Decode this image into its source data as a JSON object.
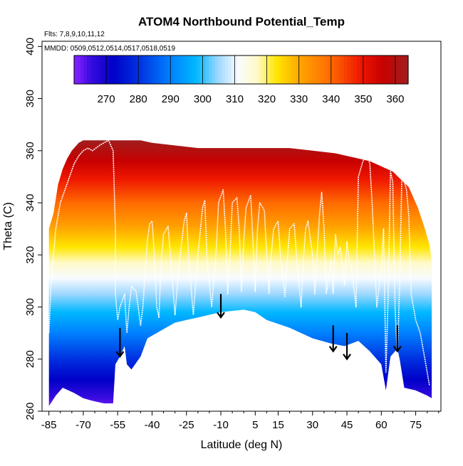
{
  "chart_data": {
    "type": "heatmap",
    "title": "ATOM4 Northbound Potential_Temp",
    "xlabel": "Latitude (deg N)",
    "ylabel": "Theta (C)",
    "annotations": {
      "flights": "Flts: 7,8,9,10,11,12",
      "dates": "MMDD: 0509,0512,0514,0517,0518,0519"
    },
    "xlim": [
      -88,
      86
    ],
    "ylim": [
      260,
      402
    ],
    "x_ticks": [
      -85,
      -70,
      -55,
      -40,
      -25,
      -10,
      5,
      15,
      30,
      45,
      60,
      75
    ],
    "y_ticks": [
      260,
      280,
      300,
      320,
      340,
      360,
      380,
      400
    ],
    "colorbar": {
      "range": [
        260,
        364
      ],
      "ticks": [
        270,
        280,
        290,
        300,
        310,
        320,
        330,
        340,
        350,
        360
      ],
      "stops": [
        {
          "v": 261,
          "color": "#7f1fff"
        },
        {
          "v": 265,
          "color": "#3a0ce0"
        },
        {
          "v": 272,
          "color": "#0000c8"
        },
        {
          "v": 280,
          "color": "#0030e0"
        },
        {
          "v": 290,
          "color": "#0080ff"
        },
        {
          "v": 298,
          "color": "#00b8ff"
        },
        {
          "v": 305,
          "color": "#9fd8ff"
        },
        {
          "v": 311,
          "color": "#f8fbff"
        },
        {
          "v": 317,
          "color": "#fffac8"
        },
        {
          "v": 323,
          "color": "#ffe600"
        },
        {
          "v": 331,
          "color": "#ffa000"
        },
        {
          "v": 340,
          "color": "#ff6a00"
        },
        {
          "v": 349,
          "color": "#ef1800"
        },
        {
          "v": 356,
          "color": "#c80000"
        },
        {
          "v": 364,
          "color": "#a01e1e"
        }
      ]
    },
    "surface_boundary": [
      [
        -85,
        262
      ],
      [
        -82,
        266
      ],
      [
        -79,
        269
      ],
      [
        -74,
        267
      ],
      [
        -70,
        265
      ],
      [
        -66,
        264
      ],
      [
        -61,
        263
      ],
      [
        -57,
        263
      ],
      [
        -56,
        278
      ],
      [
        -54,
        281
      ],
      [
        -52,
        285
      ],
      [
        -51,
        278
      ],
      [
        -49,
        276
      ],
      [
        -45,
        281
      ],
      [
        -42,
        288
      ],
      [
        -38,
        290
      ],
      [
        -34,
        292
      ],
      [
        -30,
        294
      ],
      [
        -25,
        295
      ],
      [
        -20,
        296
      ],
      [
        -15,
        297
      ],
      [
        -10,
        298
      ],
      [
        -5,
        298.5
      ],
      [
        0,
        299
      ],
      [
        5,
        298
      ],
      [
        10,
        295
      ],
      [
        20,
        292
      ],
      [
        30,
        288
      ],
      [
        38,
        286
      ],
      [
        44,
        285
      ],
      [
        50,
        287
      ],
      [
        55,
        283
      ],
      [
        60,
        278
      ],
      [
        62,
        268
      ],
      [
        64,
        281
      ],
      [
        67,
        284
      ],
      [
        68,
        280
      ],
      [
        70,
        269
      ],
      [
        75,
        268
      ],
      [
        80,
        266
      ],
      [
        82,
        265
      ]
    ],
    "top_boundary": [
      [
        -85,
        330
      ],
      [
        -83,
        336
      ],
      [
        -81,
        347
      ],
      [
        -79,
        353
      ],
      [
        -77,
        357
      ],
      [
        -75,
        360
      ],
      [
        -72,
        363
      ],
      [
        -70,
        364
      ],
      [
        -66,
        364
      ],
      [
        -60,
        364
      ],
      [
        -45,
        364
      ],
      [
        -40,
        363
      ],
      [
        -20,
        361
      ],
      [
        0,
        361
      ],
      [
        20,
        361
      ],
      [
        30,
        360
      ],
      [
        40,
        359
      ],
      [
        55,
        356
      ],
      [
        65,
        352
      ],
      [
        72,
        346
      ],
      [
        76,
        338
      ],
      [
        79,
        330
      ],
      [
        81,
        324
      ],
      [
        82,
        318
      ]
    ],
    "flight_tracks": [
      [
        [
          -85,
          290
        ],
        [
          -84,
          310
        ],
        [
          -83,
          320
        ],
        [
          -82,
          330
        ],
        [
          -80,
          340
        ],
        [
          -78,
          345
        ],
        [
          -76,
          350
        ],
        [
          -74,
          355
        ],
        [
          -72,
          358
        ],
        [
          -70,
          360
        ],
        [
          -68,
          361
        ],
        [
          -66,
          360
        ],
        [
          -63,
          362
        ],
        [
          -61,
          363
        ],
        [
          -59,
          364
        ],
        [
          -58,
          362
        ],
        [
          -57,
          360
        ],
        [
          -56,
          330
        ],
        [
          -56,
          305
        ],
        [
          -55,
          295
        ],
        [
          -54,
          300
        ],
        [
          -52,
          305
        ],
        [
          -51,
          290
        ],
        [
          -50,
          300
        ],
        [
          -49,
          308
        ],
        [
          -47,
          306
        ],
        [
          -45,
          293
        ],
        [
          -44,
          300
        ],
        [
          -42,
          326
        ],
        [
          -41,
          332
        ],
        [
          -40,
          333
        ],
        [
          -39,
          320
        ],
        [
          -38,
          300
        ],
        [
          -37,
          296
        ],
        [
          -36,
          318
        ],
        [
          -35,
          328
        ],
        [
          -33,
          331
        ],
        [
          -31,
          309
        ],
        [
          -30,
          297
        ],
        [
          -28,
          318
        ],
        [
          -26,
          333
        ],
        [
          -25,
          336
        ],
        [
          -24,
          318
        ],
        [
          -22,
          297
        ],
        [
          -20,
          320
        ],
        [
          -18,
          338
        ],
        [
          -17,
          341
        ],
        [
          -16,
          318
        ],
        [
          -14,
          300
        ],
        [
          -12,
          322
        ],
        [
          -11,
          340
        ],
        [
          -9,
          345
        ],
        [
          -8,
          330
        ],
        [
          -7,
          305
        ],
        [
          -6,
          320
        ],
        [
          -5,
          340
        ],
        [
          -3,
          342
        ],
        [
          -2,
          330
        ],
        [
          -1,
          306
        ],
        [
          0,
          325
        ],
        [
          1,
          338
        ],
        [
          3,
          343
        ],
        [
          4,
          325
        ],
        [
          5,
          306
        ],
        [
          6,
          330
        ],
        [
          7,
          340
        ],
        [
          9,
          337
        ],
        [
          10,
          320
        ],
        [
          11,
          305
        ],
        [
          12,
          320
        ],
        [
          13,
          330
        ],
        [
          15,
          333
        ],
        [
          16,
          320
        ],
        [
          18,
          304
        ],
        [
          19,
          318
        ],
        [
          20,
          330
        ],
        [
          22,
          332
        ],
        [
          23,
          320
        ],
        [
          25,
          300
        ],
        [
          26,
          318
        ],
        [
          27,
          330
        ],
        [
          28,
          333
        ],
        [
          30,
          320
        ],
        [
          31,
          305
        ],
        [
          33,
          335
        ],
        [
          34,
          344
        ],
        [
          35,
          330
        ],
        [
          36,
          305
        ],
        [
          38,
          318
        ],
        [
          39,
          305
        ],
        [
          40,
          328
        ],
        [
          41,
          320
        ],
        [
          42,
          323
        ],
        [
          44,
          308
        ],
        [
          45,
          325
        ],
        [
          46,
          318
        ],
        [
          47,
          315
        ],
        [
          49,
          300
        ],
        [
          50,
          350
        ],
        [
          52,
          356
        ],
        [
          54,
          358
        ],
        [
          55,
          355
        ],
        [
          56,
          340
        ],
        [
          57,
          320
        ],
        [
          58,
          300
        ],
        [
          60,
          315
        ],
        [
          61,
          330
        ],
        [
          62,
          275
        ],
        [
          63,
          305
        ],
        [
          64,
          352
        ],
        [
          65,
          348
        ],
        [
          66,
          300
        ],
        [
          67,
          280
        ],
        [
          68,
          310
        ],
        [
          69,
          352
        ],
        [
          70,
          348
        ],
        [
          71,
          345
        ],
        [
          72,
          335
        ],
        [
          73,
          305
        ],
        [
          74,
          300
        ],
        [
          75,
          295
        ],
        [
          77,
          290
        ],
        [
          79,
          280
        ],
        [
          80,
          275
        ],
        [
          81,
          270
        ]
      ]
    ],
    "arrows": [
      {
        "lat": -54,
        "from": 292,
        "to": 281
      },
      {
        "lat": -10,
        "from": 305,
        "to": 296
      },
      {
        "lat": 39,
        "from": 293,
        "to": 283
      },
      {
        "lat": 45,
        "from": 290,
        "to": 280
      },
      {
        "lat": 67,
        "from": 293,
        "to": 283
      }
    ]
  }
}
